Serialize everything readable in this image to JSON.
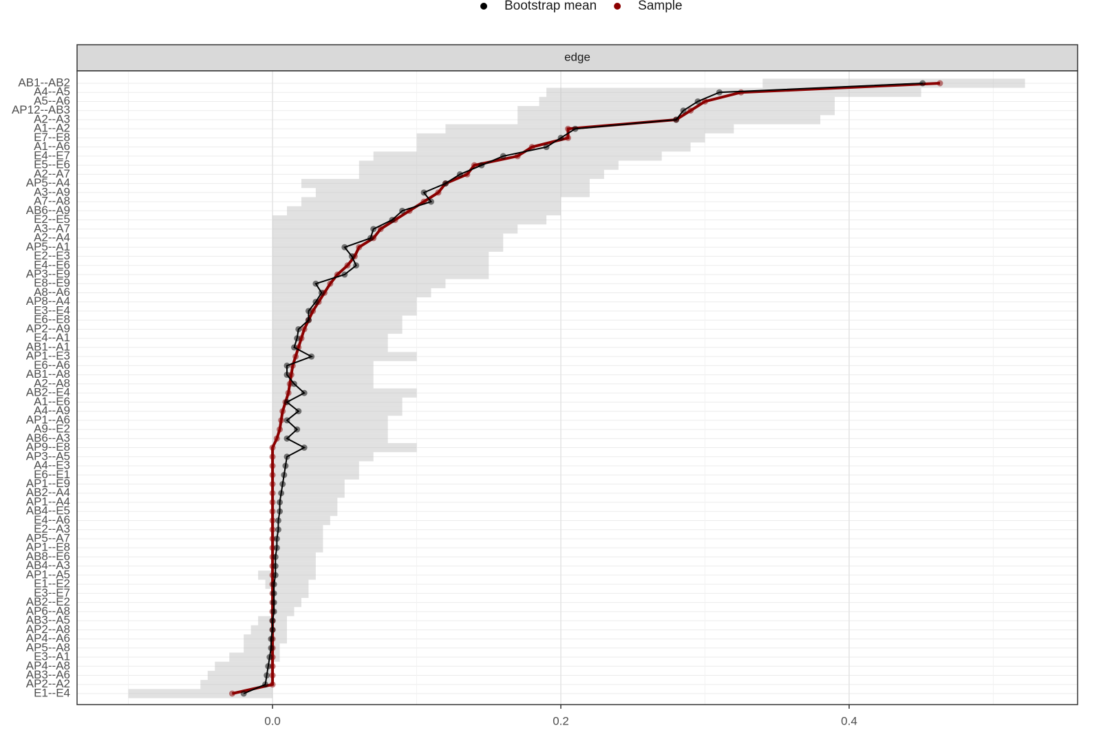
{
  "chart_data": {
    "type": "edge-accuracy",
    "strip_title": "edge",
    "categories": [
      "AB1--AB2",
      "A4--A5",
      "A5--A6",
      "AP12--AB3",
      "A2--A3",
      "A1--A2",
      "E7--E8",
      "A1--A6",
      "E4--E7",
      "E5--E6",
      "A2--A7",
      "AP5--A4",
      "A3--A9",
      "A7--A8",
      "AB6--A9",
      "E2--E5",
      "A3--A7",
      "A2--A4",
      "AP5--A1",
      "E2--E3",
      "E4--E6",
      "AP3--E9",
      "E8--E9",
      "A8--A6",
      "AP8--A4",
      "E3--E4",
      "E6--E8",
      "AP2--A9",
      "E4--A1",
      "AB1--A1",
      "AP1--E3",
      "E6--A6",
      "AB1--A8",
      "A2--A8",
      "AB2--E4",
      "A1--E6",
      "A4--A9",
      "AP1--A6",
      "A9--E2",
      "AB6--A3",
      "AP9--E8",
      "AP3--A5",
      "A4--E3",
      "E6--E1",
      "AP1--E9",
      "AB2--A4",
      "AP1--A4",
      "AB4--E5",
      "E4--A6",
      "E2--A3",
      "AP5--A7",
      "AP1--E8",
      "AB8--E6",
      "AB4--A3",
      "AP1--A5",
      "E1--E2",
      "E3--E7",
      "AB2--E2",
      "AP6--A8",
      "AB3--A5",
      "AP2--A8",
      "AP4--A6",
      "AP5--A8",
      "E3--A1",
      "AP4--A8",
      "AB3--A6",
      "AP2--A2",
      "E1--E4"
    ],
    "series": [
      {
        "name": "Bootstrap mean",
        "color": "#000000",
        "values": [
          0.451,
          0.31,
          0.295,
          0.285,
          0.28,
          0.21,
          0.2,
          0.19,
          0.16,
          0.145,
          0.13,
          0.12,
          0.105,
          0.11,
          0.09,
          0.083,
          0.07,
          0.068,
          0.05,
          0.055,
          0.058,
          0.05,
          0.03,
          0.034,
          0.03,
          0.025,
          0.025,
          0.018,
          0.017,
          0.015,
          0.027,
          0.01,
          0.01,
          0.015,
          0.022,
          0.01,
          0.018,
          0.01,
          0.017,
          0.01,
          0.022,
          0.01,
          0.009,
          0.008,
          0.007,
          0.006,
          0.005,
          0.005,
          0.004,
          0.004,
          0.003,
          0.003,
          0.002,
          0.002,
          0.002,
          0.001,
          0.001,
          0.001,
          0.001,
          0,
          0,
          -0.001,
          -0.001,
          -0.002,
          -0.003,
          -0.004,
          -0.005,
          -0.02
        ]
      },
      {
        "name": "Sample",
        "color": "#8b0000",
        "values": [
          0.463,
          0.325,
          0.3,
          0.29,
          0.28,
          0.205,
          0.205,
          0.18,
          0.17,
          0.14,
          0.135,
          0.12,
          0.115,
          0.105,
          0.095,
          0.085,
          0.075,
          0.07,
          0.06,
          0.057,
          0.052,
          0.045,
          0.04,
          0.036,
          0.032,
          0.028,
          0.025,
          0.022,
          0.02,
          0.018,
          0.016,
          0.014,
          0.013,
          0.012,
          0.011,
          0.009,
          0.007,
          0.006,
          0.005,
          0.003,
          0,
          0,
          0,
          0,
          0,
          0,
          0,
          0,
          0,
          0,
          0,
          0,
          0,
          0,
          0,
          0,
          0,
          0,
          0,
          0,
          0,
          0,
          0,
          0,
          0,
          0,
          0,
          -0.028
        ]
      }
    ],
    "ci_lower": [
      0.34,
      0.19,
      0.185,
      0.17,
      0.17,
      0.12,
      0.1,
      0.1,
      0.07,
      0.06,
      0.06,
      0.02,
      0.03,
      0.02,
      0.01,
      0,
      0,
      0,
      0,
      0,
      0,
      0,
      0,
      0,
      0,
      0,
      0,
      0,
      0,
      0,
      0,
      0,
      0,
      0,
      0,
      0,
      0,
      0,
      0,
      0,
      0,
      0,
      0,
      0,
      0,
      0,
      0,
      0,
      0,
      0,
      0,
      0,
      0,
      0,
      -0.01,
      -0.005,
      0,
      0,
      0,
      -0.01,
      -0.015,
      -0.02,
      -0.02,
      -0.03,
      -0.04,
      -0.045,
      -0.05,
      -0.1
    ],
    "ci_upper": [
      0.522,
      0.45,
      0.39,
      0.39,
      0.38,
      0.32,
      0.3,
      0.29,
      0.27,
      0.24,
      0.23,
      0.22,
      0.22,
      0.2,
      0.2,
      0.19,
      0.17,
      0.16,
      0.16,
      0.15,
      0.15,
      0.15,
      0.12,
      0.11,
      0.1,
      0.1,
      0.09,
      0.09,
      0.08,
      0.08,
      0.1,
      0.07,
      0.07,
      0.07,
      0.1,
      0.09,
      0.09,
      0.08,
      0.08,
      0.08,
      0.1,
      0.07,
      0.06,
      0.06,
      0.05,
      0.05,
      0.045,
      0.045,
      0.04,
      0.035,
      0.035,
      0.035,
      0.03,
      0.03,
      0.03,
      0.025,
      0.025,
      0.02,
      0.015,
      0.01,
      0.01,
      0.01,
      0.005,
      0.005,
      0,
      0,
      0,
      0
    ],
    "xlim": [
      -0.1356,
      0.5585
    ],
    "xticks": [
      {
        "value": 0,
        "label": "0.0"
      },
      {
        "value": 0.2,
        "label": "0.2"
      },
      {
        "value": 0.4,
        "label": "0.4"
      }
    ],
    "xminor": [
      -0.1,
      0.1,
      0.3,
      0.5
    ],
    "grid": true,
    "legend_position": "top"
  }
}
